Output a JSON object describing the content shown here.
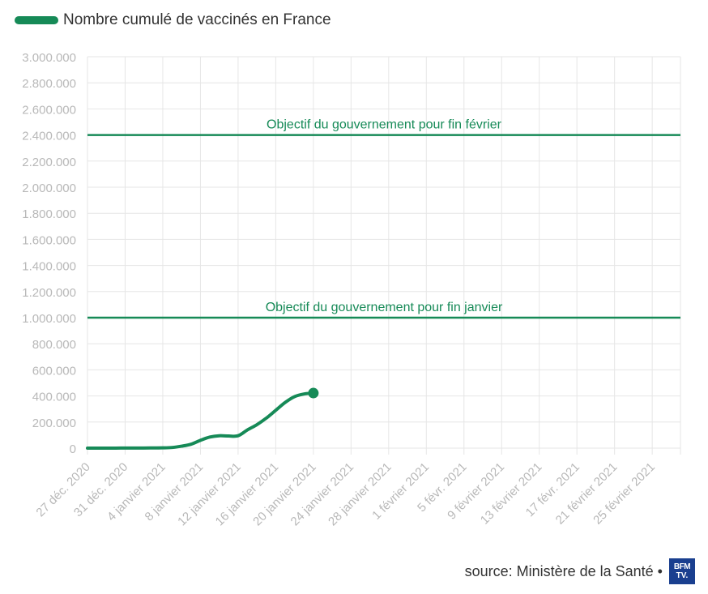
{
  "legend": {
    "label": "Nombre cumulé de vaccinés en France",
    "color": "#168a57"
  },
  "footer": {
    "source": "source: Ministère de la Santé •",
    "logo_line1": "BFM",
    "logo_line2": "TV.",
    "logo_color": "#1a3f8f"
  },
  "chart_data": {
    "type": "line",
    "title": "",
    "xlabel": "",
    "ylabel": "",
    "ylim": [
      0,
      3000000
    ],
    "y_ticks": [
      0,
      200000,
      400000,
      600000,
      800000,
      1000000,
      1200000,
      1400000,
      1600000,
      1800000,
      2000000,
      2200000,
      2400000,
      2600000,
      2800000,
      3000000
    ],
    "y_tick_labels": [
      "0",
      "200.000",
      "400.000",
      "600.000",
      "800.000",
      "1.000.000",
      "1.200.000",
      "1.400.000",
      "1.600.000",
      "1.800.000",
      "2.000.000",
      "2.200.000",
      "2.400.000",
      "2.600.000",
      "2.800.000",
      "3.000.000"
    ],
    "x_start": "2020-12-27",
    "x_end": "2021-02-28",
    "x_tick_dates": [
      "2020-12-27",
      "2020-12-31",
      "2021-01-04",
      "2021-01-08",
      "2021-01-12",
      "2021-01-16",
      "2021-01-20",
      "2021-01-24",
      "2021-01-28",
      "2021-02-01",
      "2021-02-05",
      "2021-02-09",
      "2021-02-13",
      "2021-02-17",
      "2021-02-21",
      "2021-02-25"
    ],
    "x_tick_labels": [
      "27 déc. 2020",
      "31 déc. 2020",
      "4 janvier 2021",
      "8 janvier 2021",
      "12 janvier 2021",
      "16 janvier 2021",
      "20 janvier 2021",
      "24 janvier 2021",
      "28 janvier 2021",
      "1 février 2021",
      "5 févr. 2021",
      "9 février 2021",
      "13 février 2021",
      "17 févr. 2021",
      "21 février 2021",
      "25 février 2021"
    ],
    "grid": true,
    "legend_position": "top-left",
    "series": [
      {
        "name": "Nombre cumulé de vaccinés en France",
        "color": "#168a57",
        "x": [
          "2020-12-27",
          "2020-12-28",
          "2020-12-29",
          "2020-12-30",
          "2020-12-31",
          "2021-01-01",
          "2021-01-02",
          "2021-01-03",
          "2021-01-04",
          "2021-01-05",
          "2021-01-06",
          "2021-01-07",
          "2021-01-08",
          "2021-01-09",
          "2021-01-10",
          "2021-01-11",
          "2021-01-12",
          "2021-01-13",
          "2021-01-14",
          "2021-01-15",
          "2021-01-16",
          "2021-01-17",
          "2021-01-18",
          "2021-01-19",
          "2021-01-20"
        ],
        "values": [
          0,
          100,
          200,
          300,
          500,
          700,
          1000,
          1500,
          2000,
          5000,
          15000,
          30000,
          60000,
          85000,
          95000,
          93000,
          95000,
          140000,
          180000,
          230000,
          290000,
          350000,
          395000,
          415000,
          422000
        ]
      }
    ],
    "reference_lines": [
      {
        "value": 2400000,
        "label": "Objectif du gouvernement pour fin février",
        "color": "#168a57"
      },
      {
        "value": 1000000,
        "label": "Objectif du gouvernement pour fin janvier",
        "color": "#168a57"
      }
    ]
  }
}
